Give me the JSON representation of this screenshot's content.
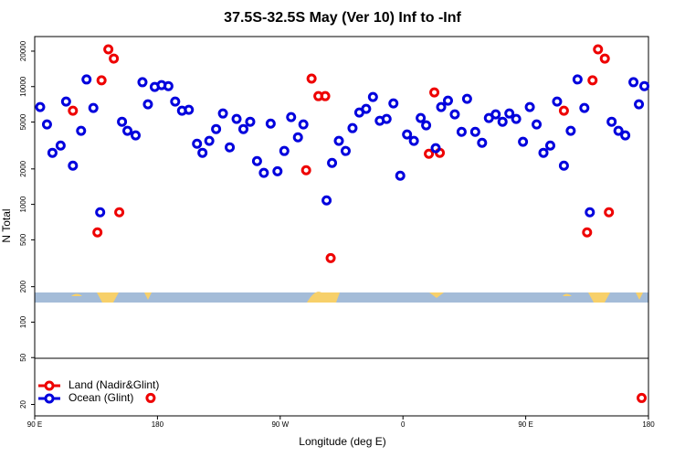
{
  "chart_data": {
    "type": "scatter",
    "title": "37.5S-32.5S May (Ver 10)   Inf to -Inf",
    "x_label": "Longitude (deg E)",
    "y_label": "N Total",
    "xlim": [
      90,
      540
    ],
    "ylim": [
      16,
      26600
    ],
    "log_y": true,
    "legend": "lower left",
    "xticks": [
      {
        "value": 90,
        "label": "90 E"
      },
      {
        "value": 180,
        "label": "180"
      },
      {
        "value": 270,
        "label": "90 W"
      },
      {
        "value": 360,
        "label": "0"
      },
      {
        "value": 450,
        "label": "90 E"
      },
      {
        "value": 540,
        "label": "180"
      }
    ],
    "yticks": [
      20,
      50,
      100,
      200,
      500,
      1000,
      2000,
      5000,
      10000,
      20000
    ],
    "series": [
      {
        "name": "Land (Nadir&Glint)",
        "color": "#ee0000",
        "x": [
          118,
          136,
          139,
          144,
          148,
          152,
          175,
          289,
          293,
          298,
          303,
          307,
          379,
          383,
          387,
          478,
          495,
          499,
          503,
          508,
          511,
          535
        ],
        "values": [
          6240,
          578,
          11300,
          20700,
          17300,
          857,
          22.7,
          1950,
          11700,
          8300,
          8300,
          350,
          2690,
          8930,
          2740,
          6240,
          578,
          11300,
          20700,
          17300,
          857,
          22.7
        ]
      },
      {
        "name": "Ocean (Glint)",
        "color": "#0000dd",
        "x": [
          94,
          99,
          103,
          109,
          113,
          118,
          124,
          128,
          133,
          138,
          154,
          158,
          164,
          169,
          173,
          178,
          183,
          188,
          193,
          198,
          203,
          209,
          213,
          218,
          223,
          228,
          233,
          238,
          243,
          248,
          253,
          258,
          263,
          268,
          273,
          278,
          283,
          287,
          304,
          308,
          313,
          318,
          323,
          328,
          333,
          338,
          343,
          348,
          353,
          358,
          363,
          368,
          373,
          377,
          384,
          388,
          393,
          398,
          403,
          407,
          413,
          418,
          423,
          428,
          433,
          438,
          443,
          448,
          453,
          458,
          463,
          468,
          473,
          478,
          483,
          488,
          493,
          497,
          513,
          518,
          523,
          529,
          533,
          537
        ],
        "values": [
          6700,
          4770,
          2740,
          3160,
          7460,
          2130,
          4210,
          11500,
          6580,
          857,
          5030,
          4210,
          3850,
          10900,
          7070,
          9930,
          10300,
          10100,
          7460,
          6240,
          6350,
          3270,
          2740,
          3460,
          4360,
          5910,
          3050,
          5310,
          4360,
          5030,
          2330,
          1850,
          4850,
          1910,
          2840,
          5510,
          3710,
          4770,
          1080,
          2250,
          3460,
          2840,
          4440,
          6020,
          6470,
          8160,
          5130,
          5310,
          7200,
          1750,
          3920,
          3460,
          5410,
          4690,
          3000,
          6700,
          7600,
          5810,
          4130,
          7870,
          4130,
          3330,
          5410,
          5810,
          5030,
          5910,
          5310,
          3400,
          6700,
          4770,
          2740,
          3160,
          7460,
          2130,
          4210,
          11500,
          6580,
          857,
          5030,
          4210,
          3850,
          10900,
          7070,
          10100
        ]
      }
    ]
  }
}
